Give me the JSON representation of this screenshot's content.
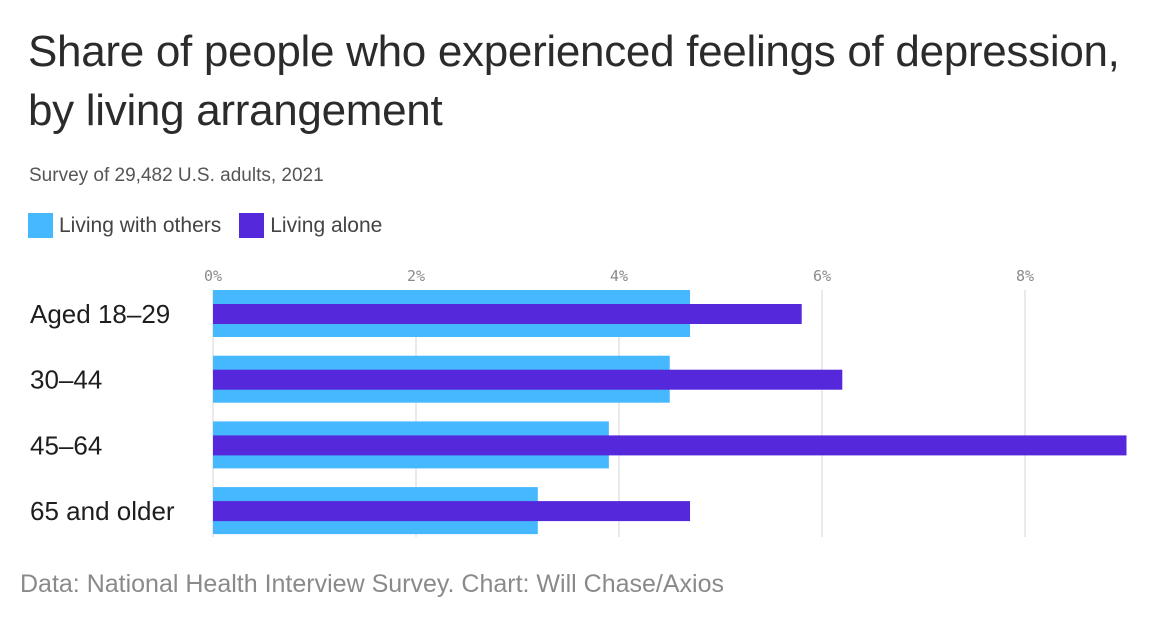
{
  "title": "Share of people who experienced feelings of depression, by living arrangement",
  "subtitle": "Survey of 29,482 U.S. adults, 2021",
  "source": "Data: National Health Interview Survey. Chart: Will Chase/Axios",
  "colors": {
    "living_with_others": "#45b8ff",
    "living_alone": "#5528db",
    "grid": "#e3e3e3"
  },
  "chart_data": {
    "type": "bar",
    "orientation": "horizontal",
    "categories": [
      "Aged 18–29",
      "30–44",
      "45–64",
      "65 and older"
    ],
    "series": [
      {
        "name": "Living with others",
        "values": [
          4.7,
          4.5,
          3.9,
          3.2
        ]
      },
      {
        "name": "Living alone",
        "values": [
          5.8,
          6.2,
          9.0,
          4.7
        ]
      }
    ],
    "x_ticks": [
      "0%",
      "2%",
      "4%",
      "6%",
      "8%"
    ],
    "xlim": [
      0,
      9
    ],
    "legend_position": "top-left",
    "grid": true
  }
}
